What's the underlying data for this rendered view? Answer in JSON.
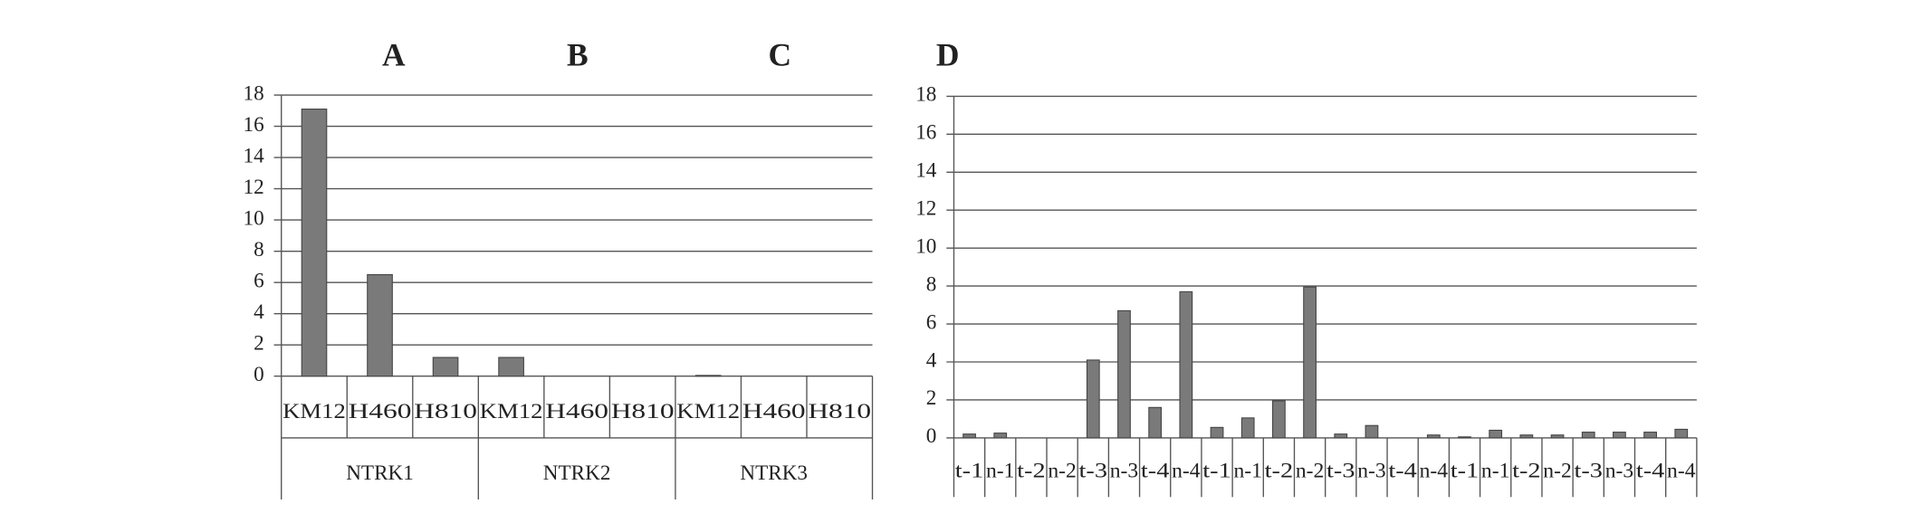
{
  "chart_data": [
    {
      "type": "bar",
      "panel_labels": [
        "A",
        "B",
        "C"
      ],
      "categories": [
        "KM12",
        "H460",
        "H810",
        "KM12",
        "H460",
        "H810",
        "KM12",
        "H460",
        "H810"
      ],
      "groups": [
        "NTRK1",
        "NTRK2",
        "NTRK3"
      ],
      "values": [
        17.1,
        6.5,
        1.2,
        1.2,
        0,
        0,
        0.05,
        0,
        0
      ],
      "color": "#7a7a7a",
      "ylim": [
        0,
        18
      ],
      "yticks": [
        0,
        2,
        4,
        6,
        8,
        10,
        12,
        14,
        16,
        18
      ],
      "grid": true
    },
    {
      "type": "bar",
      "title": "D",
      "categories": [
        "t-1",
        "n-1",
        "t-2",
        "n-2",
        "t-3",
        "n-3",
        "t-4",
        "n-4",
        "t-1",
        "n-1",
        "t-2",
        "n-2",
        "t-3",
        "n-3",
        "t-4",
        "n-4",
        "t-1",
        "n-1",
        "t-2",
        "n-2",
        "t-3",
        "n-3",
        "t-4",
        "n-4"
      ],
      "values": [
        0.2,
        0.25,
        0,
        0,
        4.1,
        6.7,
        1.6,
        7.7,
        0.55,
        1.05,
        1.95,
        7.95,
        0.2,
        0.65,
        0,
        0.15,
        0.05,
        0.4,
        0.15,
        0.15,
        0.3,
        0.3,
        0.3,
        0.45
      ],
      "color": "#7a7a7a",
      "ylim": [
        0,
        18
      ],
      "yticks": [
        0,
        2,
        4,
        6,
        8,
        10,
        12,
        14,
        16,
        18
      ],
      "grid": true
    }
  ]
}
